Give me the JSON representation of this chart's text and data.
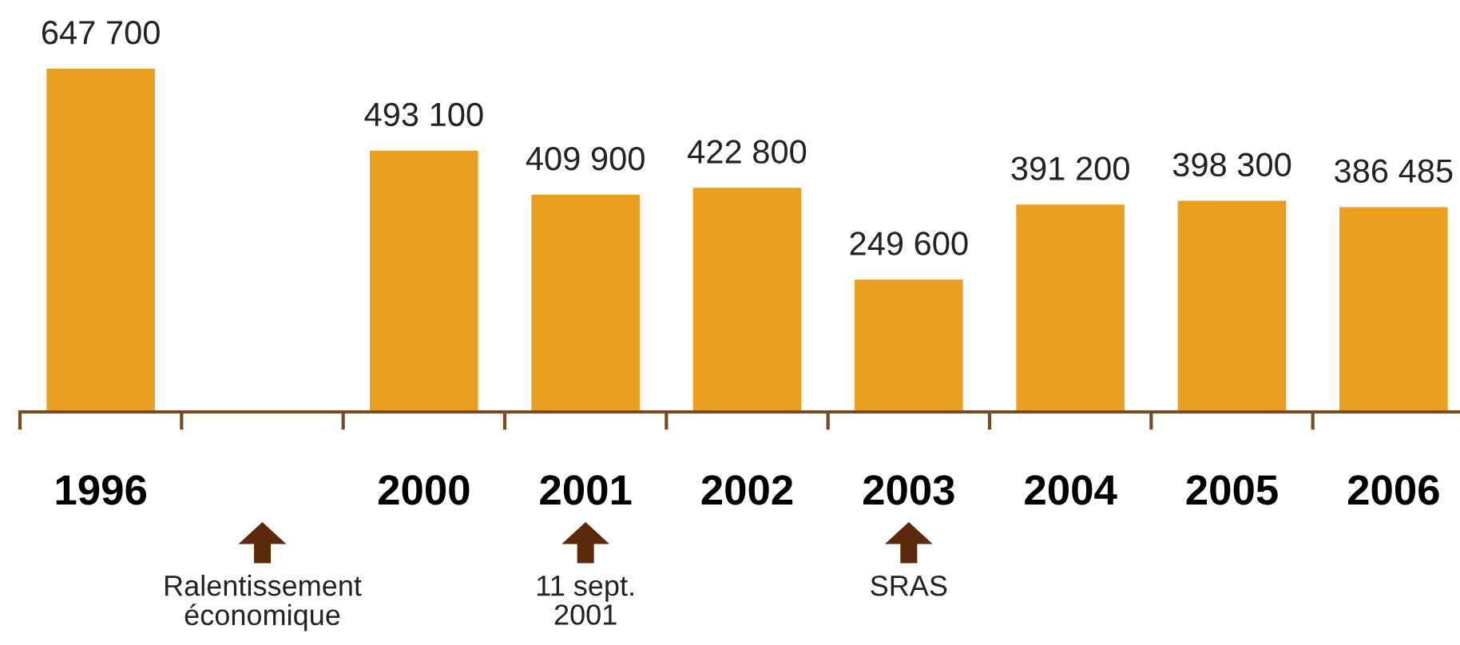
{
  "chart_data": {
    "type": "bar",
    "categories": [
      "1996",
      null,
      "2000",
      "2001",
      "2002",
      "2003",
      "2004",
      "2005",
      "2006"
    ],
    "values": [
      647700,
      null,
      493100,
      409900,
      422800,
      249600,
      391200,
      398300,
      386485
    ],
    "color": "#e99f1f",
    "value_labels": [
      "647 700",
      null,
      "493 100",
      "409 900",
      "422 800",
      "249 600",
      "391 200",
      "398 300",
      "386 485"
    ],
    "annotations": [
      "Ralentissement\néconomique",
      "11 sept.\n2001",
      "SRAS"
    ]
  }
}
